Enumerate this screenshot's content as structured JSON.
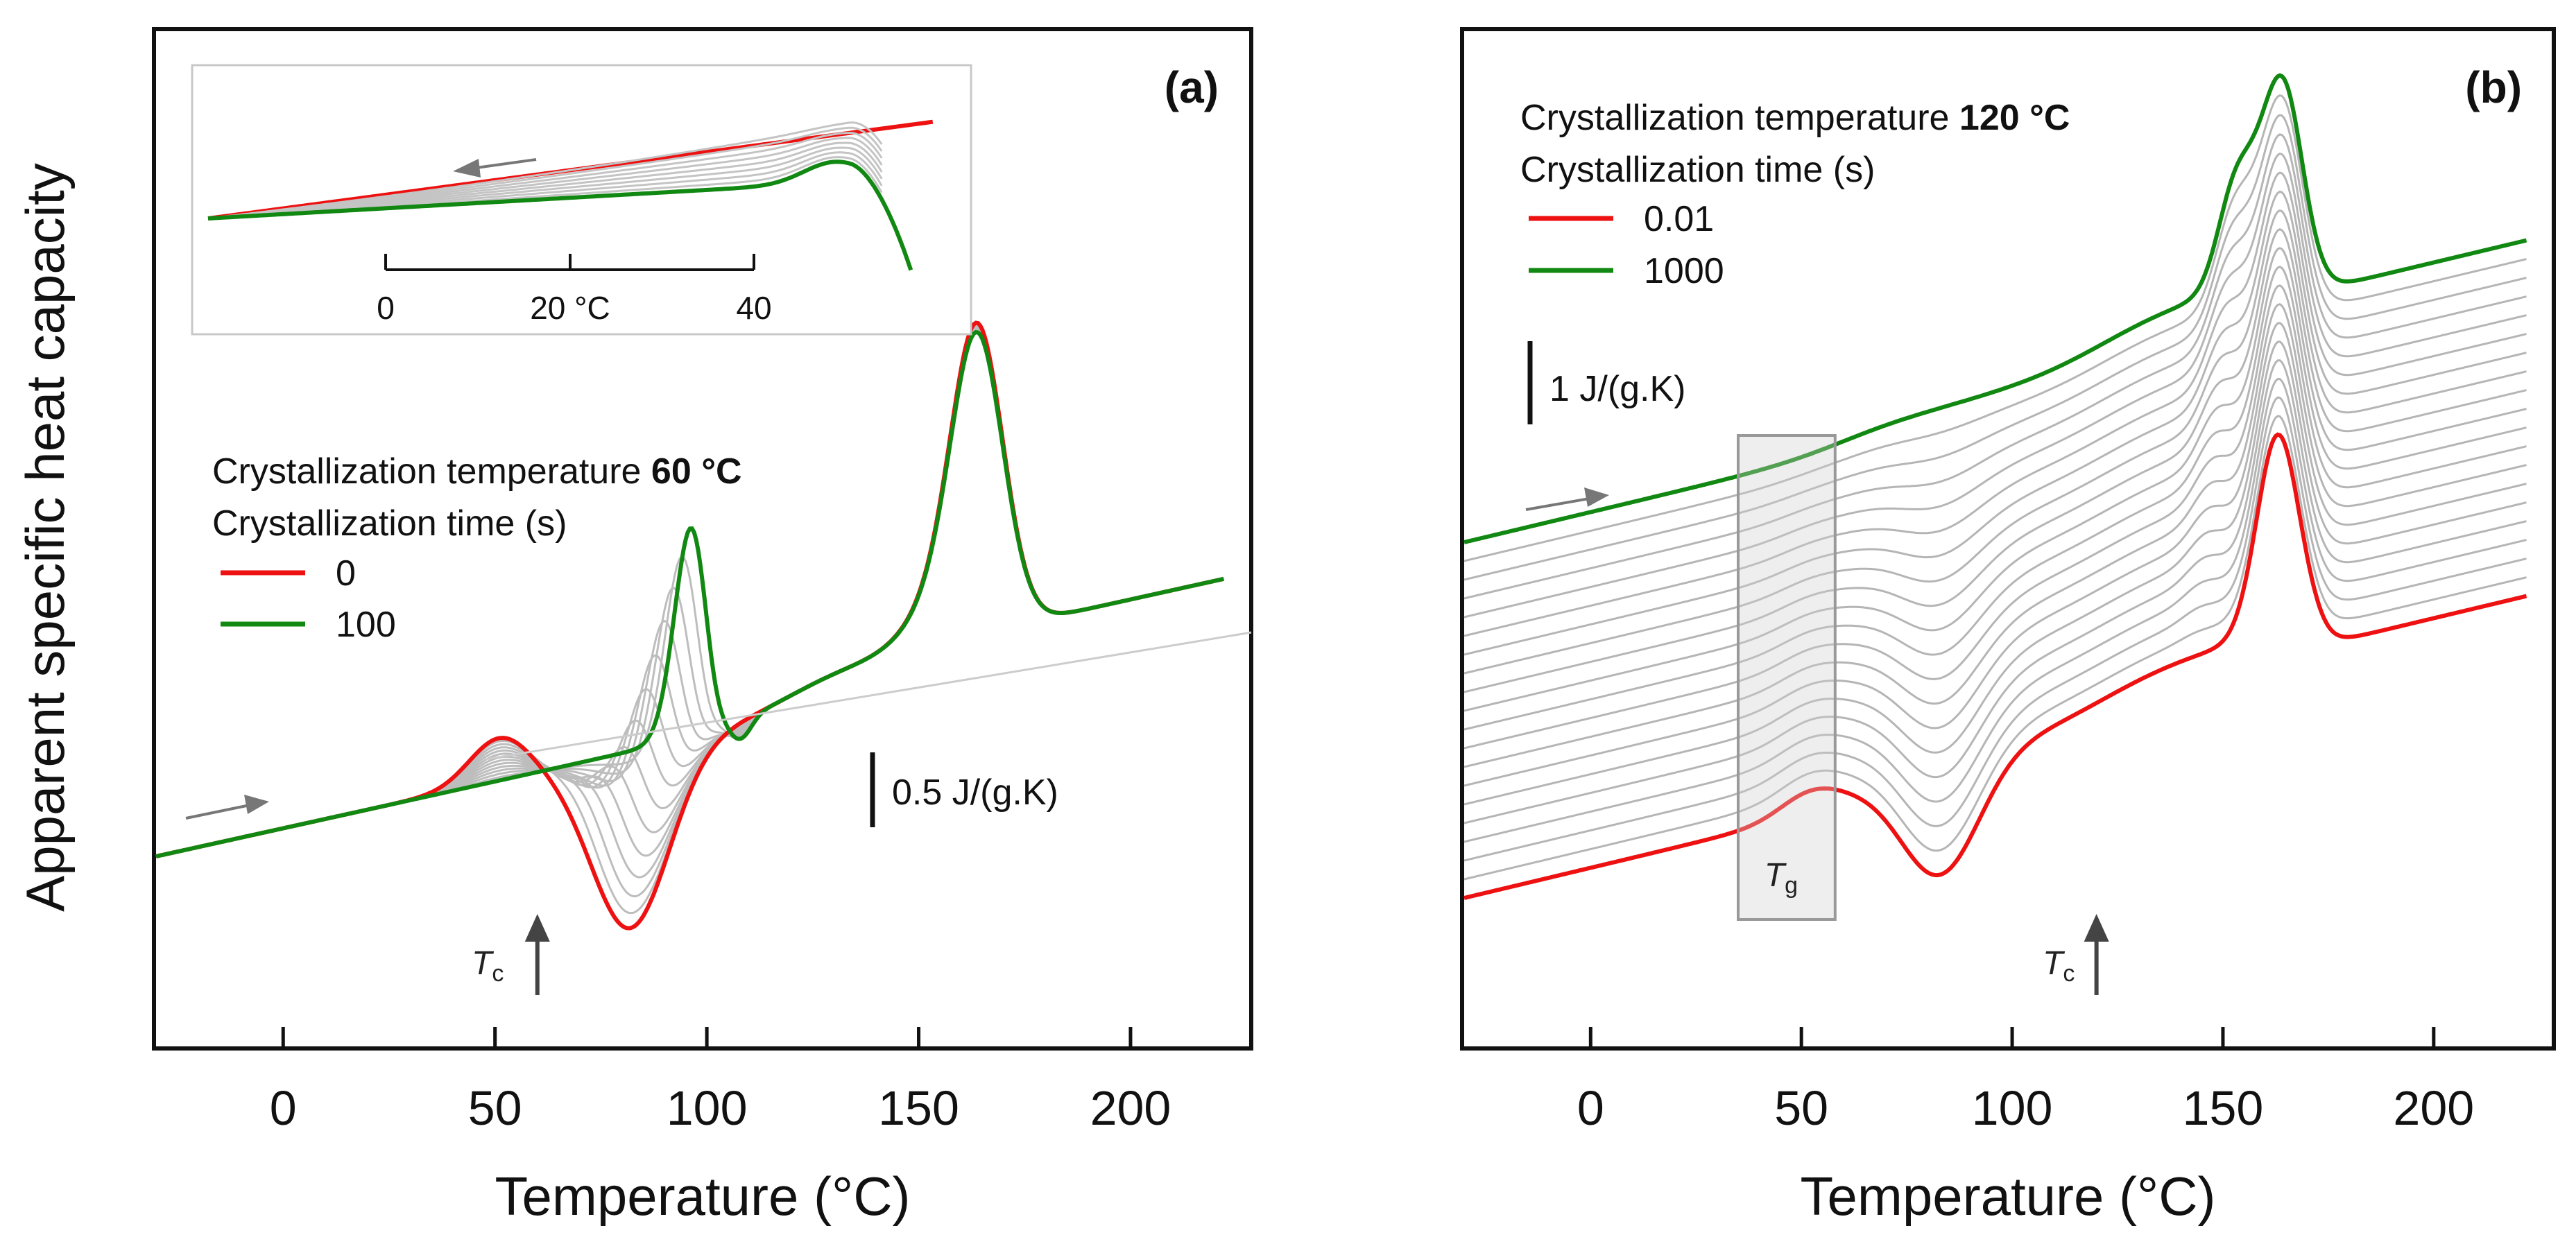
{
  "chart_data": [
    {
      "type": "line",
      "panel_label": "(a)",
      "xlabel": "Temperature (°C)",
      "ylabel": "Apparent specific heat capacity",
      "xlim": [
        -30,
        228
      ],
      "x_ticks": [
        "0",
        "50",
        "100",
        "150",
        "200"
      ],
      "legend": {
        "title_prefix": "Crystallization temperature ",
        "title_value": "60 °C",
        "subtitle": "Crystallization time (s)",
        "entries": [
          {
            "name": "0",
            "color": "#ee1111"
          },
          {
            "name": "100",
            "color": "#118811"
          }
        ]
      },
      "scale_bar_label": "0.5 J/(g.K)",
      "annotation_tc": "T",
      "annotation_tc_sub": "c",
      "annotation_tc_x": 60,
      "inset": {
        "tick_labels": [
          "0",
          "20 °C",
          "40"
        ]
      },
      "series_colors": {
        "first": "#ee1111",
        "last": "#118811",
        "intermediate": "#bdbdbd"
      },
      "intermediate_count": 12
    },
    {
      "type": "line",
      "panel_label": "(b)",
      "xlabel": "Temperature (°C)",
      "xlim": [
        -30,
        228
      ],
      "x_ticks": [
        "0",
        "50",
        "100",
        "150",
        "200"
      ],
      "legend": {
        "title_prefix": "Crystallization temperature ",
        "title_value": "120 °C",
        "subtitle": "Crystallization time (s)",
        "entries": [
          {
            "name": "0.01",
            "color": "#ee1111"
          },
          {
            "name": "1000",
            "color": "#118811"
          }
        ]
      },
      "scale_bar_label": "1 J/(g.K)",
      "annotation_tg": "T",
      "annotation_tg_sub": "g",
      "annotation_tc": "T",
      "annotation_tc_sub": "c",
      "annotation_tc_x": 120,
      "tg_region": [
        35,
        58
      ],
      "series_colors": {
        "first": "#ee1111",
        "last": "#118811",
        "intermediate": "#b5b5b5"
      },
      "intermediate_count": 18
    }
  ]
}
